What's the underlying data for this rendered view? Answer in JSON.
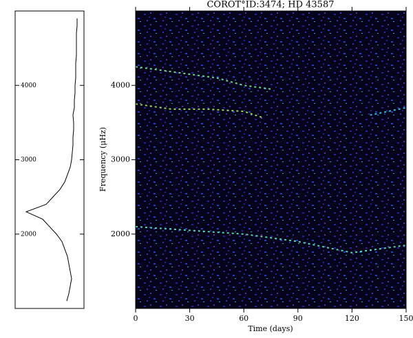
{
  "chart_data": [
    {
      "type": "line",
      "orientation": "vertical",
      "x_reversed": true,
      "xlim": [
        0,
        100
      ],
      "ylim": [
        1000,
        5000
      ],
      "yticks": [
        2000,
        3000,
        4000
      ],
      "color": "#000000",
      "x": [
        1100,
        1200,
        1300,
        1400,
        1500,
        1600,
        1700,
        1800,
        1900,
        2000,
        2100,
        2200,
        2300,
        2400,
        2500,
        2600,
        2700,
        2800,
        2900,
        3000,
        3100,
        3200,
        3300,
        3400,
        3500,
        3600,
        3700,
        3800,
        3900,
        4000,
        4100,
        4200,
        4300,
        4400,
        4500,
        4600,
        4700,
        4800,
        4900
      ],
      "values": [
        25,
        22,
        20,
        18,
        20,
        22,
        24,
        28,
        32,
        40,
        50,
        60,
        84,
        55,
        45,
        35,
        28,
        24,
        20,
        18,
        17,
        16,
        16,
        15,
        15,
        16,
        14,
        14,
        13,
        13,
        12,
        12,
        12,
        11,
        11,
        11,
        11,
        10,
        10
      ]
    },
    {
      "type": "spectrogram",
      "title": "COROT°ID:3474; HD 43587",
      "xlabel": "Time (days)",
      "ylabel": "Frequency (μHz)",
      "xlim": [
        0,
        150
      ],
      "xticks": [
        0,
        30,
        60,
        90,
        120,
        150
      ],
      "ylim": [
        1000,
        5000
      ],
      "yticks": [
        2000,
        3000,
        4000
      ],
      "series": [
        {
          "color": "#7fffa0",
          "x": [
            0,
            15,
            30,
            45,
            60,
            75
          ],
          "values": [
            4250,
            4200,
            4150,
            4100,
            4000,
            3950
          ]
        },
        {
          "color": "#b0ff60",
          "x": [
            0,
            20,
            40,
            60,
            70
          ],
          "values": [
            3750,
            3680,
            3680,
            3650,
            3570
          ]
        },
        {
          "color": "#60ffd0",
          "x": [
            0,
            30,
            60,
            90,
            120,
            150
          ],
          "values": [
            2100,
            2050,
            2000,
            1900,
            1750,
            1850
          ]
        },
        {
          "color": "#40e0ff",
          "x": [
            130,
            150
          ],
          "values": [
            3600,
            3700
          ]
        }
      ]
    }
  ]
}
